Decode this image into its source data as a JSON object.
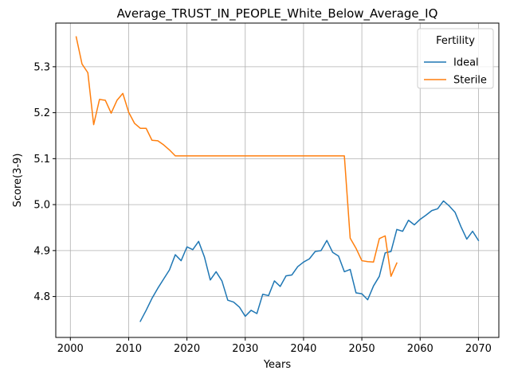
{
  "chart_data": {
    "type": "line",
    "title": "Average_TRUST_IN_PEOPLE_White_Below_Average_IQ",
    "xlabel": "Years",
    "ylabel": "Score(3-9)",
    "xlim": [
      1997.5,
      2073.5
    ],
    "ylim": [
      4.711,
      5.395
    ],
    "xticks": [
      2000,
      2010,
      2020,
      2030,
      2040,
      2050,
      2060,
      2070
    ],
    "yticks": [
      4.8,
      4.9,
      5.0,
      5.1,
      5.2,
      5.3
    ],
    "grid": true,
    "legend": {
      "title": "Fertility",
      "placement": "top-right"
    },
    "series": [
      {
        "name": "Ideal",
        "color": "#1f77b4",
        "x": [
          2012,
          2013,
          2014,
          2015,
          2016,
          2017,
          2018,
          2019,
          2020,
          2021,
          2022,
          2023,
          2024,
          2025,
          2026,
          2027,
          2028,
          2029,
          2030,
          2031,
          2032,
          2033,
          2034,
          2035,
          2036,
          2037,
          2038,
          2039,
          2040,
          2041,
          2042,
          2043,
          2044,
          2045,
          2046,
          2047,
          2048,
          2049,
          2050,
          2051,
          2052,
          2053,
          2054,
          2055,
          2056,
          2057,
          2058,
          2059,
          2060,
          2061,
          2062,
          2063,
          2064,
          2065,
          2066,
          2067,
          2068,
          2069,
          2070
        ],
        "y": [
          4.746,
          4.77,
          4.796,
          4.818,
          4.838,
          4.858,
          4.891,
          4.878,
          4.908,
          4.902,
          4.92,
          4.886,
          4.836,
          4.854,
          4.834,
          4.792,
          4.788,
          4.777,
          4.757,
          4.77,
          4.763,
          4.805,
          4.802,
          4.834,
          4.822,
          4.845,
          4.847,
          4.865,
          4.875,
          4.882,
          4.898,
          4.9,
          4.922,
          4.896,
          4.888,
          4.854,
          4.859,
          4.808,
          4.806,
          4.793,
          4.823,
          4.844,
          4.895,
          4.898,
          4.946,
          4.942,
          4.966,
          4.956,
          4.968,
          4.977,
          4.987,
          4.991,
          5.008,
          4.997,
          4.983,
          4.952,
          4.925,
          4.942,
          4.922
        ]
      },
      {
        "name": "Sterile",
        "color": "#ff7f0e",
        "x": [
          2001,
          2002,
          2003,
          2004,
          2005,
          2006,
          2007,
          2008,
          2009,
          2010,
          2011,
          2012,
          2013,
          2014,
          2015,
          2016,
          2017,
          2018,
          2019,
          2020,
          2021,
          2022,
          2023,
          2024,
          2025,
          2026,
          2027,
          2028,
          2029,
          2030,
          2031,
          2032,
          2033,
          2034,
          2035,
          2036,
          2037,
          2038,
          2039,
          2040,
          2041,
          2042,
          2043,
          2044,
          2045,
          2046,
          2047,
          2048,
          2049,
          2050,
          2051,
          2052,
          2053,
          2054,
          2055,
          2056
        ],
        "y": [
          5.365,
          5.306,
          5.287,
          5.174,
          5.229,
          5.227,
          5.199,
          5.227,
          5.242,
          5.201,
          5.177,
          5.166,
          5.166,
          5.14,
          5.139,
          5.13,
          5.119,
          5.106,
          5.106,
          5.106,
          5.106,
          5.106,
          5.106,
          5.106,
          5.106,
          5.106,
          5.106,
          5.106,
          5.106,
          5.106,
          5.106,
          5.106,
          5.106,
          5.106,
          5.106,
          5.106,
          5.106,
          5.106,
          5.106,
          5.106,
          5.106,
          5.106,
          5.106,
          5.106,
          5.106,
          5.106,
          5.106,
          4.927,
          4.905,
          4.878,
          4.876,
          4.875,
          4.926,
          4.932,
          4.844,
          4.873
        ]
      }
    ]
  }
}
